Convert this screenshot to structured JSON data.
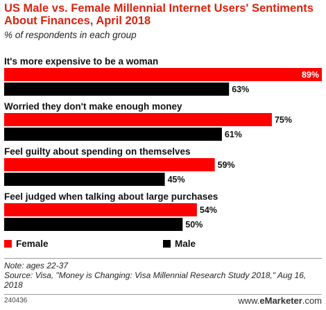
{
  "title": "US Male vs. Female Millennial Internet Users' Sentiments About Finances, April 2018",
  "subtitle": "% of respondents in each group",
  "colors": {
    "female": "#ff0000",
    "male": "#000000",
    "title": "#d9230f"
  },
  "chart_data": {
    "type": "bar",
    "orientation": "horizontal",
    "title": "US Male vs. Female Millennial Internet Users' Sentiments About Finances, April 2018",
    "subtitle": "% of respondents in each group",
    "categories": [
      "It's more expensive to be a woman",
      "Worried they don't make enough money",
      "Feel guilty about spending on themselves",
      "Feel judged when talking about large purchases"
    ],
    "series": [
      {
        "name": "Female",
        "values": [
          89,
          75,
          59,
          54
        ],
        "color": "#ff0000"
      },
      {
        "name": "Male",
        "values": [
          63,
          61,
          45,
          50
        ],
        "color": "#000000"
      }
    ],
    "value_suffix": "%",
    "xlim": [
      0,
      89
    ],
    "grid": false,
    "legend_position": "bottom-left"
  },
  "footer": {
    "note": "Note: ages 22-37",
    "source": "Source: Visa, \"Money is Changing: Visa Millennial Research Study 2018,\" Aug 16, 2018",
    "chart_id": "240436",
    "brand_prefix": "www.",
    "brand_name": "eMarketer",
    "brand_suffix": ".com"
  }
}
